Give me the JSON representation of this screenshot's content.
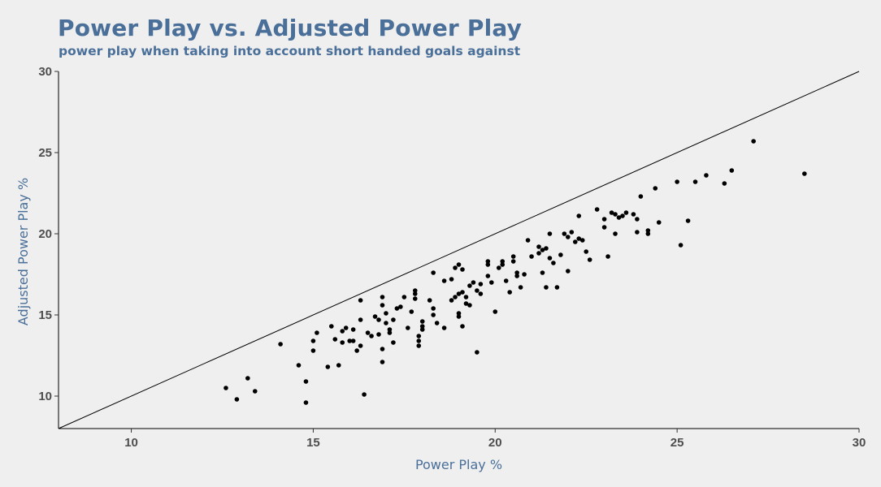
{
  "chart_data": {
    "type": "scatter",
    "title": "Power Play vs. Adjusted Power Play",
    "subtitle": "power play when taking into account short handed goals against",
    "xlabel": "Power Play %",
    "ylabel": "Adjusted Power Play %",
    "xlim": [
      8,
      30
    ],
    "ylim": [
      8,
      30
    ],
    "x_ticks": [
      10,
      15,
      20,
      25,
      30
    ],
    "y_ticks": [
      10,
      15,
      20,
      25,
      30
    ],
    "grid": false,
    "reference_line": {
      "type": "identity",
      "from": [
        8,
        8
      ],
      "to": [
        30,
        30
      ]
    },
    "colors": {
      "title": "#4a6f99",
      "points": "#000000",
      "line": "#000000",
      "background": "#efefef",
      "ticks": "#4d4d4d"
    },
    "points": [
      [
        12.6,
        10.5
      ],
      [
        12.9,
        9.8
      ],
      [
        13.2,
        11.1
      ],
      [
        13.4,
        10.3
      ],
      [
        14.1,
        13.2
      ],
      [
        14.6,
        11.9
      ],
      [
        14.8,
        9.6
      ],
      [
        14.8,
        10.9
      ],
      [
        15.0,
        12.8
      ],
      [
        15.0,
        13.4
      ],
      [
        15.1,
        13.9
      ],
      [
        15.4,
        11.8
      ],
      [
        15.5,
        14.3
      ],
      [
        15.6,
        13.5
      ],
      [
        15.7,
        11.9
      ],
      [
        15.8,
        13.3
      ],
      [
        15.8,
        14.0
      ],
      [
        15.9,
        14.2
      ],
      [
        16.0,
        13.4
      ],
      [
        16.1,
        14.1
      ],
      [
        16.1,
        13.4
      ],
      [
        16.2,
        12.8
      ],
      [
        16.3,
        13.1
      ],
      [
        16.3,
        14.7
      ],
      [
        16.3,
        15.9
      ],
      [
        16.4,
        10.1
      ],
      [
        16.5,
        13.9
      ],
      [
        16.6,
        13.7
      ],
      [
        16.7,
        14.9
      ],
      [
        16.8,
        13.8
      ],
      [
        16.8,
        14.7
      ],
      [
        16.9,
        12.1
      ],
      [
        16.9,
        15.6
      ],
      [
        16.9,
        12.9
      ],
      [
        16.9,
        16.1
      ],
      [
        17.0,
        14.5
      ],
      [
        17.0,
        15.1
      ],
      [
        17.1,
        14.1
      ],
      [
        17.1,
        13.9
      ],
      [
        17.2,
        14.7
      ],
      [
        17.2,
        13.3
      ],
      [
        17.3,
        15.4
      ],
      [
        17.4,
        15.5
      ],
      [
        17.5,
        16.1
      ],
      [
        17.6,
        14.2
      ],
      [
        17.7,
        15.2
      ],
      [
        17.8,
        16.3
      ],
      [
        17.8,
        16.5
      ],
      [
        17.8,
        16.0
      ],
      [
        17.9,
        13.7
      ],
      [
        17.9,
        13.1
      ],
      [
        17.9,
        13.4
      ],
      [
        18.0,
        14.3
      ],
      [
        18.0,
        14.6
      ],
      [
        18.0,
        14.1
      ],
      [
        18.2,
        15.9
      ],
      [
        18.3,
        15.0
      ],
      [
        18.3,
        15.4
      ],
      [
        18.3,
        17.6
      ],
      [
        18.4,
        14.5
      ],
      [
        18.6,
        14.2
      ],
      [
        18.6,
        17.1
      ],
      [
        18.8,
        15.9
      ],
      [
        18.8,
        17.2
      ],
      [
        18.9,
        16.1
      ],
      [
        18.9,
        17.9
      ],
      [
        19.0,
        14.9
      ],
      [
        19.0,
        15.1
      ],
      [
        19.0,
        16.3
      ],
      [
        19.0,
        18.1
      ],
      [
        19.1,
        16.4
      ],
      [
        19.1,
        14.3
      ],
      [
        19.1,
        17.8
      ],
      [
        19.2,
        16.1
      ],
      [
        19.2,
        15.7
      ],
      [
        19.3,
        15.6
      ],
      [
        19.3,
        16.8
      ],
      [
        19.4,
        17.0
      ],
      [
        19.5,
        12.7
      ],
      [
        19.5,
        16.5
      ],
      [
        19.6,
        16.3
      ],
      [
        19.6,
        16.9
      ],
      [
        19.8,
        18.1
      ],
      [
        19.8,
        18.3
      ],
      [
        19.8,
        17.4
      ],
      [
        19.9,
        17.0
      ],
      [
        20.0,
        15.2
      ],
      [
        20.1,
        17.9
      ],
      [
        20.2,
        18.3
      ],
      [
        20.2,
        18.1
      ],
      [
        20.3,
        17.1
      ],
      [
        20.4,
        16.4
      ],
      [
        20.5,
        18.3
      ],
      [
        20.5,
        18.6
      ],
      [
        20.6,
        17.4
      ],
      [
        20.6,
        17.6
      ],
      [
        20.7,
        16.7
      ],
      [
        20.8,
        17.5
      ],
      [
        20.9,
        19.6
      ],
      [
        21.0,
        18.6
      ],
      [
        21.2,
        18.8
      ],
      [
        21.2,
        19.2
      ],
      [
        21.3,
        19.0
      ],
      [
        21.3,
        17.6
      ],
      [
        21.4,
        16.7
      ],
      [
        21.4,
        19.1
      ],
      [
        21.5,
        18.5
      ],
      [
        21.5,
        20.0
      ],
      [
        21.6,
        18.2
      ],
      [
        21.7,
        16.7
      ],
      [
        21.8,
        18.7
      ],
      [
        21.9,
        20.0
      ],
      [
        22.0,
        19.8
      ],
      [
        22.0,
        17.7
      ],
      [
        22.1,
        20.1
      ],
      [
        22.2,
        19.5
      ],
      [
        22.3,
        19.7
      ],
      [
        22.3,
        21.1
      ],
      [
        22.4,
        19.6
      ],
      [
        22.5,
        18.9
      ],
      [
        22.6,
        18.4
      ],
      [
        22.8,
        21.5
      ],
      [
        23.0,
        20.4
      ],
      [
        23.0,
        20.9
      ],
      [
        23.1,
        18.6
      ],
      [
        23.2,
        21.3
      ],
      [
        23.3,
        21.2
      ],
      [
        23.3,
        20.0
      ],
      [
        23.4,
        21.0
      ],
      [
        23.5,
        21.1
      ],
      [
        23.6,
        21.3
      ],
      [
        23.8,
        21.2
      ],
      [
        23.9,
        20.9
      ],
      [
        23.9,
        20.1
      ],
      [
        24.0,
        22.3
      ],
      [
        24.2,
        20.0
      ],
      [
        24.2,
        20.2
      ],
      [
        24.4,
        22.8
      ],
      [
        24.5,
        20.7
      ],
      [
        25.0,
        23.2
      ],
      [
        25.1,
        19.3
      ],
      [
        25.3,
        20.8
      ],
      [
        25.5,
        23.2
      ],
      [
        25.8,
        23.6
      ],
      [
        26.3,
        23.1
      ],
      [
        26.5,
        23.9
      ],
      [
        27.1,
        25.7
      ],
      [
        28.5,
        23.7
      ]
    ]
  }
}
